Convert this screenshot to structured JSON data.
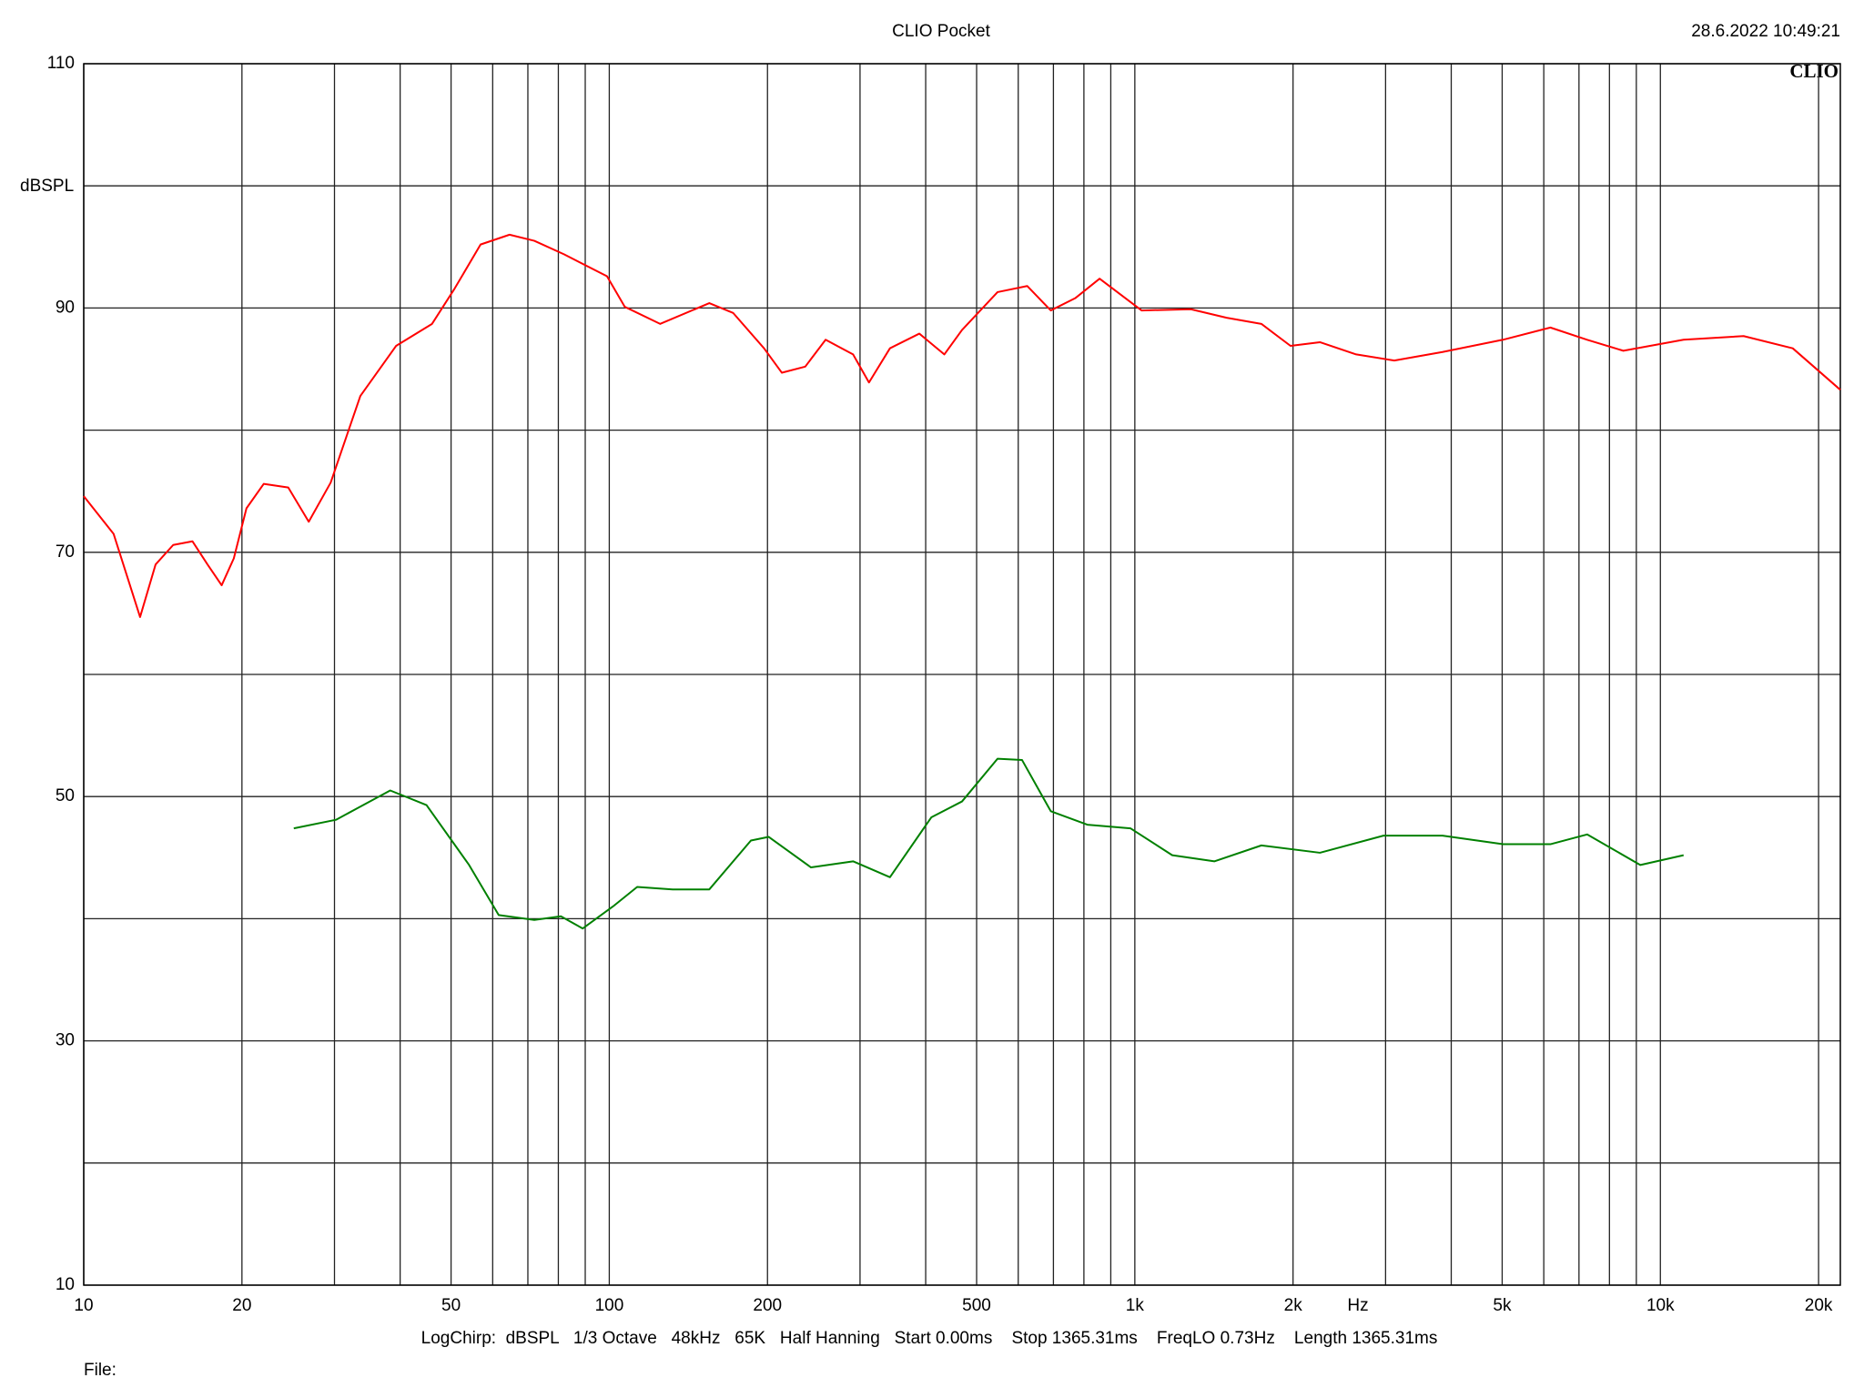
{
  "chart_data": {
    "type": "line",
    "title": "CLIO Pocket",
    "timestamp": "28.6.2022 10:49:21",
    "logo": "CLIO",
    "y_label": "dBSPL",
    "x_label": "Hz",
    "footer": "LogChirp:  dBSPL   1/3 Octave   48kHz   65K   Half Hanning   Start 0.00ms    Stop 1365.31ms    FreqLO 0.73Hz    Length 1365.31ms",
    "file_label": "File:",
    "xscale": "log",
    "grid": true,
    "xlim": [
      10,
      22000
    ],
    "ylim": [
      10,
      110
    ],
    "xticks": [
      10,
      20,
      50,
      100,
      200,
      500,
      {
        "value": 1000,
        "label": "1k"
      },
      {
        "value": 2000,
        "label": "2k"
      },
      {
        "value": 5000,
        "label": "5k"
      },
      {
        "value": 10000,
        "label": "10k"
      },
      {
        "value": 20000,
        "label": "20k"
      }
    ],
    "xgrid": [
      30,
      40,
      60,
      70,
      80,
      90,
      300,
      400,
      600,
      700,
      800,
      900,
      3000,
      4000,
      6000,
      7000,
      8000,
      9000
    ],
    "yticks": [
      10,
      30,
      50,
      70,
      90,
      110
    ],
    "ygrid": [
      20,
      40,
      60,
      80,
      100
    ],
    "series": [
      {
        "color": "#ff0000",
        "x": [
          10,
          11.4,
          12.8,
          13.7,
          14.8,
          16.1,
          17.2,
          18.3,
          19.3,
          20.4,
          22,
          24.5,
          26.8,
          29.5,
          33.6,
          39.3,
          46,
          50.8,
          56.9,
          64.6,
          72,
          82,
          99,
          107,
          125,
          155,
          172,
          197,
          213,
          236,
          258,
          291,
          312,
          342,
          389,
          434,
          469,
          548,
          624,
          692,
          770,
          857,
          1030,
          1278,
          1495,
          1741,
          1978,
          2250,
          2638,
          3117,
          3849,
          5017,
          6176,
          7255,
          8501,
          11070,
          14400,
          17860,
          22000
        ],
        "values": [
          74.6,
          71.5,
          64.7,
          69,
          70.6,
          70.9,
          69,
          67.3,
          69.5,
          73.6,
          75.6,
          75.3,
          72.5,
          75.7,
          82.8,
          86.9,
          88.7,
          91.6,
          95.2,
          96,
          95.5,
          94.4,
          92.6,
          90.1,
          88.7,
          90.4,
          89.6,
          86.7,
          84.7,
          85.2,
          87.4,
          86.2,
          83.9,
          86.7,
          87.9,
          86.2,
          88.2,
          91.3,
          91.8,
          89.8,
          90.8,
          92.4,
          89.8,
          89.9,
          89.2,
          88.7,
          86.9,
          87.2,
          86.2,
          85.7,
          86.4,
          87.4,
          88.4,
          87.4,
          86.5,
          87.4,
          87.7,
          86.7,
          83.3
        ]
      },
      {
        "color": "#008000",
        "x": [
          25.1,
          30.2,
          38.3,
          44.9,
          54.1,
          61.6,
          72,
          80.9,
          89,
          101.6,
          113,
          132,
          155,
          186,
          201,
          242,
          291,
          342,
          410,
          469,
          548,
          610,
          692,
          812,
          981,
          1178,
          1418,
          1741,
          2250,
          2973,
          3849,
          5017,
          6176,
          7255,
          9158,
          11070
        ],
        "values": [
          47.4,
          48.1,
          50.5,
          49.3,
          44.4,
          40.3,
          39.9,
          40.2,
          39.2,
          41,
          42.6,
          42.4,
          42.4,
          46.4,
          46.7,
          44.2,
          44.7,
          43.4,
          48.3,
          49.6,
          53.1,
          53,
          48.8,
          47.7,
          47.4,
          45.2,
          44.7,
          46,
          45.4,
          46.8,
          46.8,
          46.1,
          46.1,
          46.9,
          44.4,
          45.2
        ]
      }
    ]
  }
}
